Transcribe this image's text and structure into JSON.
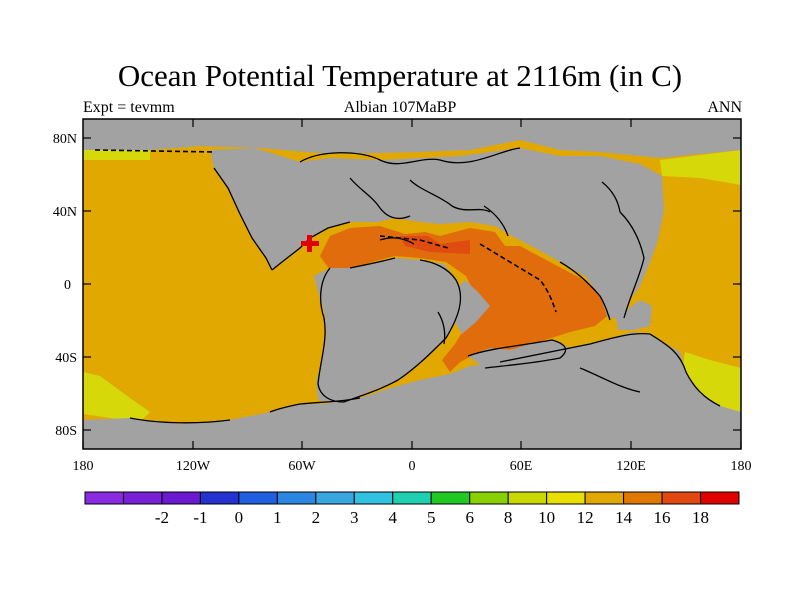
{
  "title": "Ocean Potential Temperature at 2116m (in C)",
  "left_string": "Expt = tevmm",
  "center_string": "Albian  107MaBP",
  "right_string": "ANN",
  "lat_labels": [
    "80N",
    "40N",
    "0",
    "40S",
    "80S"
  ],
  "lon_labels": [
    "180",
    "120W",
    "60W",
    "0",
    "60E",
    "120E",
    "180"
  ],
  "colorbar": {
    "colors": [
      "#8a2be2",
      "#7a1fd8",
      "#6a19d0",
      "#2433d0",
      "#2060e0",
      "#2a86e0",
      "#3aa6e0",
      "#30c0e0",
      "#1fd0b0",
      "#22c822",
      "#88d000",
      "#c8d800",
      "#e8e000",
      "#e0a800",
      "#e07800",
      "#e04810",
      "#e00000"
    ],
    "labels": [
      "-2",
      "-1",
      "0",
      "1",
      "2",
      "3",
      "4",
      "5",
      "6",
      "8",
      "10",
      "12",
      "14",
      "16",
      "18"
    ]
  },
  "colors": {
    "land": "#a2a2a2",
    "ocean_main": "#e0a800",
    "ocean_warm": "#e06c0c",
    "ocean_cool": "#d6d80a",
    "ocean_arctic": "#22c4e8",
    "marker": "#e00000"
  },
  "icons": [
    "plus-marker-icon"
  ]
}
